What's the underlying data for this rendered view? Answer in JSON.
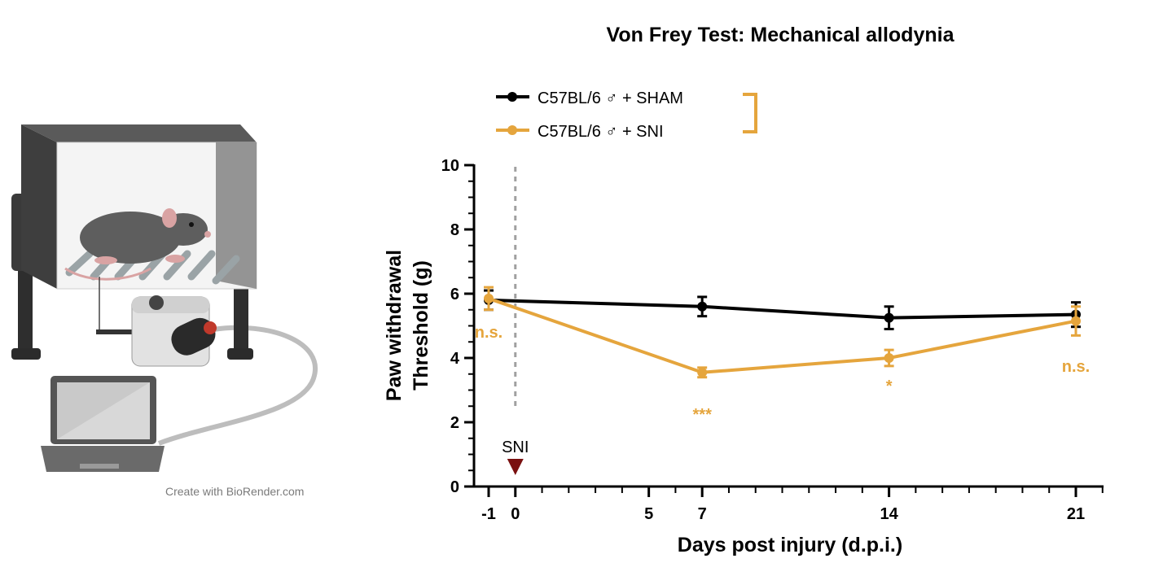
{
  "credit_text": "Create with BioRender.com",
  "chart_data": {
    "type": "line",
    "title": "Von Frey Test: Mechanical allodynia",
    "xlabel": "Days post injury (d.p.i.)",
    "ylabel_line1": "Paw withdrawal",
    "ylabel_line2": "Threshold (g)",
    "xlim": [
      -1,
      22
    ],
    "ylim": [
      0,
      10
    ],
    "x_ticks": [
      -1,
      0,
      5,
      7,
      14,
      21
    ],
    "y_ticks": [
      0,
      2,
      4,
      6,
      8,
      10
    ],
    "grid": false,
    "legend_position": "top-left",
    "series": [
      {
        "name": "C57BL/6 ♂ + SHAM",
        "color": "#000000",
        "x": [
          -1,
          7,
          14,
          21
        ],
        "y": [
          5.8,
          5.6,
          5.25,
          5.35
        ],
        "err": [
          0.3,
          0.3,
          0.35,
          0.38
        ]
      },
      {
        "name": "C57BL/6 ♂ + SNI",
        "color": "#e5a53d",
        "x": [
          -1,
          7,
          14,
          21
        ],
        "y": [
          5.85,
          3.55,
          4.0,
          5.15
        ],
        "err": [
          0.35,
          0.15,
          0.25,
          0.45
        ]
      }
    ],
    "significance": [
      {
        "x": -1,
        "label": "n.s."
      },
      {
        "x": 7,
        "label": "***"
      },
      {
        "x": 14,
        "label": "*"
      },
      {
        "x": 21,
        "label": "n.s."
      }
    ],
    "annotation": {
      "x": 0,
      "label": "SNI",
      "color": "#7a1010"
    }
  }
}
